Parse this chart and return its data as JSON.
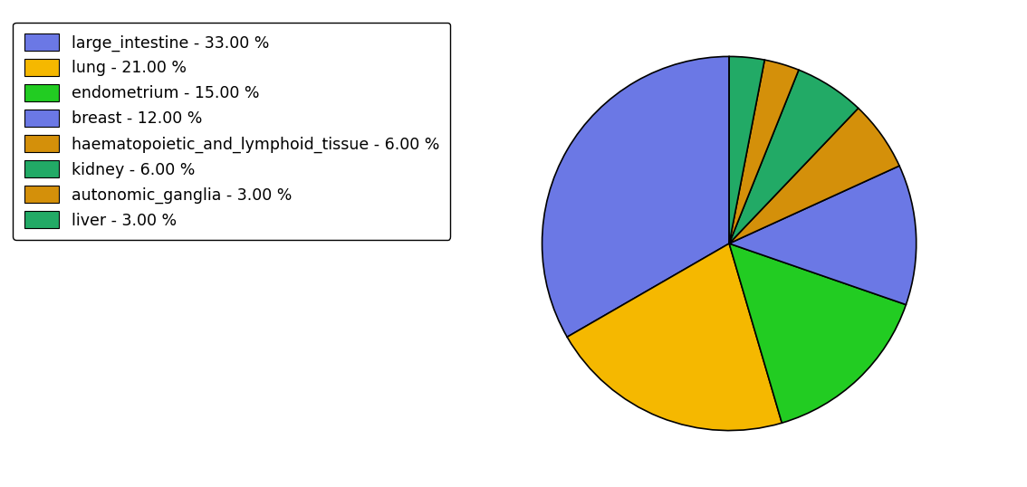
{
  "labels": [
    "large_intestine",
    "lung",
    "endometrium",
    "breast",
    "haematopoietic_and_lymphoid_tissue",
    "kidney",
    "autonomic_ganglia",
    "liver"
  ],
  "values": [
    33,
    21,
    15,
    12,
    6,
    6,
    3,
    3
  ],
  "colors": [
    "#6b78e5",
    "#f5b800",
    "#22cc22",
    "#6b78e5",
    "#d4900a",
    "#22aa66",
    "#d4900a",
    "#22aa66"
  ],
  "legend_labels": [
    "large_intestine - 33.00 %",
    "lung - 21.00 %",
    "endometrium - 15.00 %",
    "breast - 12.00 %",
    "haematopoietic_and_lymphoid_tissue - 6.00 %",
    "kidney - 6.00 %",
    "autonomic_ganglia - 3.00 %",
    "liver - 3.00 %"
  ],
  "legend_colors": [
    "#6b78e5",
    "#f5b800",
    "#22cc22",
    "#6b78e5",
    "#d4900a",
    "#22aa66",
    "#d4900a",
    "#22aa66"
  ],
  "startangle": 90,
  "figsize": [
    11.34,
    5.38
  ],
  "dpi": 100
}
